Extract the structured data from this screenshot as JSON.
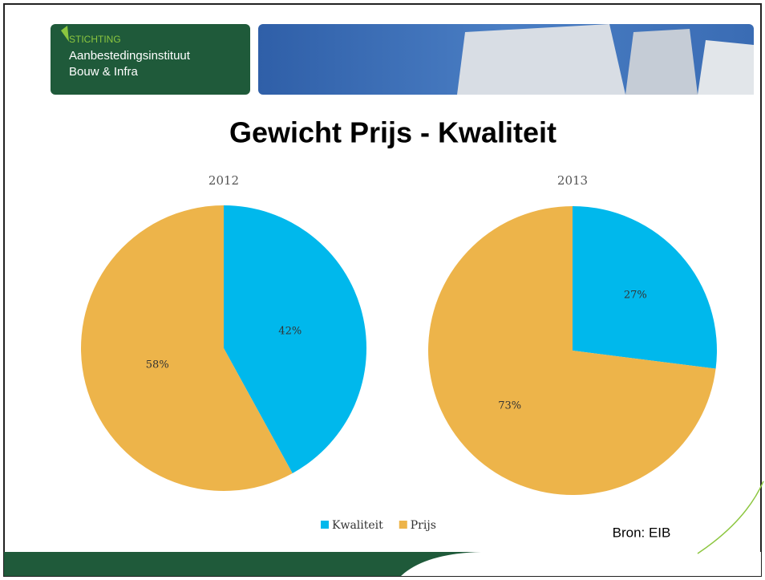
{
  "header": {
    "org_label": "STICHTING",
    "org_name": "Aanbestedingsinstituut",
    "org_sub": "Bouw & Infra"
  },
  "title": "Gewicht Prijs - Kwaliteit",
  "source": "Bron: EIB",
  "chart_data": [
    {
      "type": "pie",
      "title": "2012",
      "categories": [
        "Kwaliteit",
        "Prijs"
      ],
      "values": [
        42,
        58
      ],
      "value_labels": [
        "42%",
        "58%"
      ],
      "colors": [
        "#00b8ec",
        "#edb44a"
      ],
      "legend": "bottom"
    },
    {
      "type": "pie",
      "title": "2013",
      "categories": [
        "Kwaliteit",
        "Prijs"
      ],
      "values": [
        27,
        73
      ],
      "value_labels": [
        "27%",
        "73%"
      ],
      "colors": [
        "#00b8ec",
        "#edb44a"
      ],
      "legend": "bottom"
    }
  ]
}
